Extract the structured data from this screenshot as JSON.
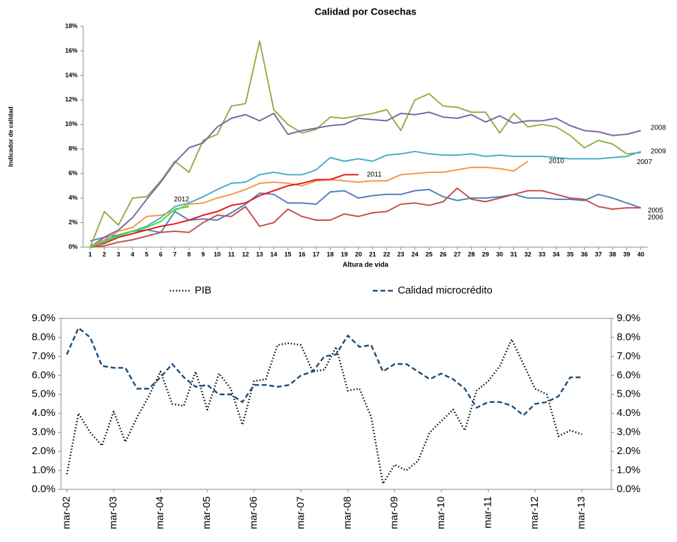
{
  "chart_data": [
    {
      "type": "line",
      "title": "Calidad por Cosechas",
      "y_label": "Indicador de calidad",
      "x_label": "Altura de vida",
      "categories": [
        1,
        2,
        3,
        4,
        5,
        6,
        7,
        8,
        9,
        10,
        11,
        12,
        13,
        14,
        15,
        16,
        17,
        18,
        19,
        20,
        21,
        22,
        23,
        24,
        25,
        26,
        27,
        28,
        29,
        30,
        31,
        32,
        33,
        34,
        35,
        36,
        37,
        38,
        39,
        40
      ],
      "ylim": [
        0,
        18
      ],
      "yticks": [
        {
          "value": 0,
          "label": "0%"
        },
        {
          "value": 2,
          "label": "2%"
        },
        {
          "value": 4,
          "label": "4%"
        },
        {
          "value": 6,
          "label": "6%"
        },
        {
          "value": 8,
          "label": "8%"
        },
        {
          "value": 10,
          "label": "10%"
        },
        {
          "value": 12,
          "label": "12%"
        },
        {
          "value": 14,
          "label": "14%"
        },
        {
          "value": 16,
          "label": "16%"
        },
        {
          "value": 18,
          "label": "18%"
        }
      ],
      "grid": false,
      "series": [
        {
          "name": "2005",
          "color": "#4f81bd",
          "values": [
            0.5,
            0.8,
            1.0,
            1.3,
            1.4,
            1.2,
            2.9,
            2.2,
            2.3,
            2.2,
            2.8,
            3.5,
            4.4,
            4.3,
            3.6,
            3.6,
            3.5,
            4.5,
            4.6,
            4.0,
            4.2,
            4.3,
            4.3,
            4.6,
            4.7,
            4.1,
            3.8,
            4.0,
            4.0,
            4.1,
            4.3,
            4.0,
            4.0,
            3.9,
            3.9,
            3.8,
            4.3,
            4.0,
            3.6,
            3.2
          ]
        },
        {
          "name": "2006",
          "color": "#c0504d",
          "values": [
            0,
            0.1,
            0.4,
            0.6,
            0.9,
            1.2,
            1.3,
            1.2,
            2.0,
            2.6,
            2.5,
            3.3,
            1.7,
            2.0,
            3.1,
            2.5,
            2.2,
            2.2,
            2.7,
            2.5,
            2.8,
            2.9,
            3.5,
            3.6,
            3.4,
            3.7,
            4.8,
            3.9,
            3.7,
            4.0,
            4.3,
            4.6,
            4.6,
            4.3,
            4.0,
            3.9,
            3.3,
            3.1,
            3.2,
            3.2
          ]
        },
        {
          "name": "2007",
          "color": "#8fb04a",
          "values": [
            0,
            2.9,
            1.8,
            4.0,
            4.1,
            5.4,
            7.0,
            6.1,
            8.7,
            9.2,
            11.5,
            11.7,
            16.8,
            11.2,
            10.0,
            9.3,
            9.6,
            10.6,
            10.5,
            10.7,
            10.9,
            11.2,
            9.5,
            12.0,
            12.5,
            11.5,
            11.4,
            11.0,
            11.0,
            9.3,
            10.9,
            9.8,
            10.0,
            9.8,
            9.1,
            8.1,
            8.7,
            8.4,
            7.6,
            7.7
          ]
        },
        {
          "name": "2008",
          "color": "#8064a2",
          "values": [
            0,
            0.8,
            1.4,
            2.4,
            3.9,
            5.3,
            6.9,
            8.1,
            8.5,
            9.8,
            10.5,
            10.8,
            10.3,
            10.9,
            9.2,
            9.5,
            9.7,
            9.9,
            10.0,
            10.5,
            10.4,
            10.3,
            10.9,
            10.8,
            11.0,
            10.6,
            10.5,
            10.8,
            10.2,
            10.7,
            10.1,
            10.3,
            10.3,
            10.5,
            9.9,
            9.5,
            9.4,
            9.1,
            9.2,
            9.5
          ]
        },
        {
          "name": "2009",
          "color": "#4bacc6",
          "values": [
            0,
            0.5,
            1.0,
            1.3,
            1.7,
            2.4,
            3.3,
            3.6,
            4.1,
            4.7,
            5.2,
            5.3,
            5.9,
            6.1,
            5.9,
            5.9,
            6.3,
            7.3,
            7.0,
            7.2,
            7.0,
            7.5,
            7.6,
            7.8,
            7.6,
            7.5,
            7.5,
            7.6,
            7.4,
            7.5,
            7.4,
            7.4,
            7.4,
            7.3,
            7.2,
            7.2,
            7.2,
            7.3,
            7.4,
            7.8
          ]
        },
        {
          "name": "2010",
          "color": "#f79646",
          "values": [
            0,
            0.6,
            1.3,
            1.6,
            2.5,
            2.6,
            3.0,
            3.5,
            3.6,
            4.0,
            4.3,
            4.7,
            5.2,
            5.3,
            5.2,
            5.0,
            5.4,
            5.5,
            5.4,
            5.3,
            5.4,
            5.4,
            5.9,
            6.0,
            6.1,
            6.1,
            6.3,
            6.5,
            6.5,
            6.4,
            6.2,
            7.0,
            null,
            null,
            null,
            null,
            null,
            null,
            null,
            null
          ]
        },
        {
          "name": "2011",
          "color": "#e8141a",
          "values": [
            0,
            0.3,
            0.8,
            1.1,
            1.4,
            1.7,
            1.9,
            2.2,
            2.6,
            2.9,
            3.4,
            3.6,
            4.2,
            4.6,
            5.0,
            5.2,
            5.5,
            5.5,
            5.9,
            5.9,
            null,
            null,
            null,
            null,
            null,
            null,
            null,
            null,
            null,
            null,
            null,
            null,
            null,
            null,
            null,
            null,
            null,
            null,
            null,
            null
          ]
        },
        {
          "name": "2012",
          "color": "#33e63c",
          "values": [
            0,
            0.4,
            0.9,
            1.3,
            1.6,
            2.1,
            3.1,
            3.3,
            null,
            null,
            null,
            null,
            null,
            null,
            null,
            null,
            null,
            null,
            null,
            null,
            null,
            null,
            null,
            null,
            null,
            null,
            null,
            null,
            null,
            null,
            null,
            null,
            null,
            null,
            null,
            null,
            null,
            null,
            null,
            null
          ]
        }
      ]
    },
    {
      "type": "line",
      "legend": "top",
      "categories": [
        "mar-02",
        null,
        null,
        null,
        "mar-03",
        null,
        null,
        null,
        "mar-04",
        null,
        null,
        null,
        "mar-05",
        null,
        null,
        null,
        "mar-06",
        null,
        null,
        null,
        "mar-07",
        null,
        null,
        null,
        "mar-08",
        null,
        null,
        null,
        "mar-09",
        null,
        null,
        null,
        "mar-10",
        null,
        null,
        null,
        "mar-11",
        null,
        null,
        null,
        "mar-12",
        null,
        null,
        null,
        "mar-13",
        null,
        null
      ],
      "ylim": [
        0,
        9
      ],
      "yticks": [
        {
          "value": 0,
          "label": "0.0%"
        },
        {
          "value": 1,
          "label": "1.0%"
        },
        {
          "value": 2,
          "label": "2.0%"
        },
        {
          "value": 3,
          "label": "3.0%"
        },
        {
          "value": 4,
          "label": "4.0%"
        },
        {
          "value": 5,
          "label": "5.0%"
        },
        {
          "value": 6,
          "label": "6.0%"
        },
        {
          "value": 7,
          "label": "7.0%"
        },
        {
          "value": 8,
          "label": "8.0%"
        },
        {
          "value": 9,
          "label": "9.0%"
        }
      ],
      "y2lim": [
        0,
        9
      ],
      "y2ticks": [
        {
          "value": 0,
          "label": "0.0%"
        },
        {
          "value": 1,
          "label": "1.0%"
        },
        {
          "value": 2,
          "label": "2.0%"
        },
        {
          "value": 3,
          "label": "3.0%"
        },
        {
          "value": 4,
          "label": "4.0%"
        },
        {
          "value": 5,
          "label": "5.0%"
        },
        {
          "value": 6,
          "label": "6.0%"
        },
        {
          "value": 7,
          "label": "7.0%"
        },
        {
          "value": 8,
          "label": "8.0%"
        },
        {
          "value": 9,
          "label": "9.0%"
        }
      ],
      "grid": false,
      "series": [
        {
          "name": "PIB",
          "color": "#000000",
          "style": "dotted",
          "values": [
            0.8,
            4.0,
            3.0,
            2.3,
            4.1,
            2.5,
            3.8,
            4.9,
            6.2,
            4.5,
            4.4,
            6.2,
            4.2,
            6.1,
            5.3,
            3.4,
            5.7,
            5.8,
            7.6,
            7.7,
            7.6,
            6.2,
            6.3,
            7.5,
            5.2,
            5.3,
            3.8,
            0.3,
            1.3,
            1.0,
            1.5,
            3.0,
            3.6,
            4.2,
            3.1,
            5.2,
            5.7,
            6.5,
            7.9,
            6.6,
            5.3,
            5.0,
            2.8,
            3.1,
            2.9,
            null,
            null
          ]
        },
        {
          "name": "Calidad microcrédito",
          "color": "#1f4e79",
          "style": "dashed",
          "axis": "y2",
          "values": [
            7.1,
            8.5,
            8.0,
            6.5,
            6.4,
            6.4,
            5.3,
            5.3,
            5.9,
            6.6,
            5.9,
            5.4,
            5.5,
            5.0,
            5.0,
            4.6,
            5.5,
            5.5,
            5.4,
            5.5,
            6.0,
            6.2,
            7.0,
            7.1,
            8.1,
            7.5,
            7.6,
            6.2,
            6.6,
            6.6,
            6.2,
            5.8,
            6.1,
            5.8,
            5.3,
            4.3,
            4.6,
            4.6,
            4.4,
            3.9,
            4.5,
            4.6,
            4.9,
            5.9,
            5.9,
            null,
            null
          ]
        }
      ]
    }
  ]
}
